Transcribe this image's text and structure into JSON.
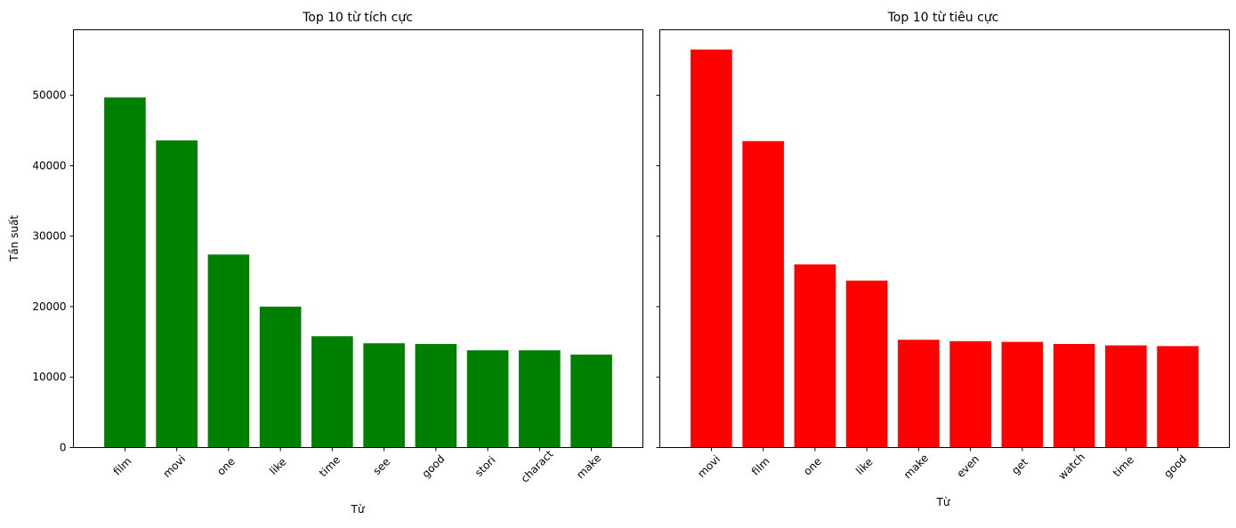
{
  "chart_data": [
    {
      "type": "bar",
      "title": "Top 10 từ tích cực",
      "xlabel": "Từ",
      "ylabel": "Tần suất",
      "categories": [
        "film",
        "movi",
        "one",
        "like",
        "time",
        "see",
        "good",
        "stori",
        "charact",
        "make"
      ],
      "values": [
        49700,
        43600,
        27400,
        20000,
        15800,
        14800,
        14700,
        13800,
        13800,
        13200
      ],
      "ylim": [
        0,
        59300
      ],
      "yticks": [
        0,
        10000,
        20000,
        30000,
        40000,
        50000
      ],
      "color": "#008000"
    },
    {
      "type": "bar",
      "title": "Top 10 từ tiêu cực",
      "xlabel": "Từ",
      "ylabel": "",
      "categories": [
        "movi",
        "film",
        "one",
        "like",
        "make",
        "even",
        "get",
        "watch",
        "time",
        "good"
      ],
      "values": [
        56500,
        43500,
        26000,
        23700,
        15300,
        15100,
        15000,
        14700,
        14500,
        14400
      ],
      "ylim": [
        0,
        59300
      ],
      "yticks": [
        0,
        10000,
        20000,
        30000,
        40000,
        50000
      ],
      "color": "#ff0000"
    }
  ]
}
